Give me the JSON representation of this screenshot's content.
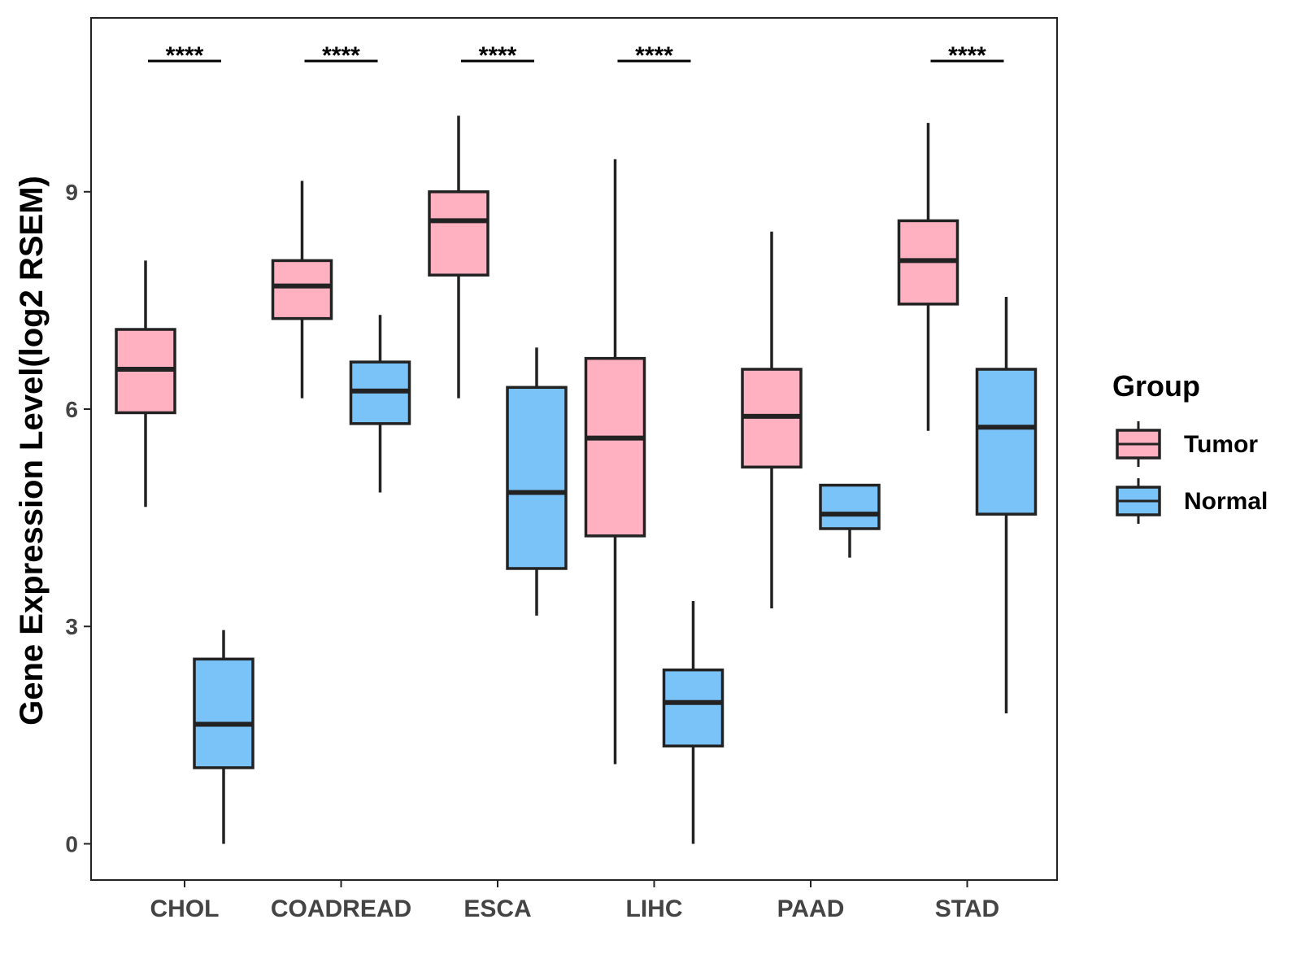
{
  "chart_data": {
    "type": "boxplot",
    "title": "",
    "xlabel": "",
    "ylabel": "Gene Expression Level(log2 RSEM)",
    "ylim": [
      -0.5,
      11.4
    ],
    "yticks": [
      0,
      3,
      6,
      9
    ],
    "categories": [
      "CHOL",
      "COADREAD",
      "ESCA",
      "LIHC",
      "PAAD",
      "STAD"
    ],
    "legend": {
      "title": "Group",
      "position": "right",
      "items": [
        {
          "name": "Tumor",
          "color": "#FFB0C1"
        },
        {
          "name": "Normal",
          "color": "#7AC3F9"
        }
      ]
    },
    "series": [
      {
        "name": "Tumor",
        "color": "#FFB0C1",
        "boxes": [
          {
            "min": 4.65,
            "q1": 5.95,
            "median": 6.55,
            "q3": 7.1,
            "max": 8.05
          },
          {
            "min": 6.15,
            "q1": 7.25,
            "median": 7.7,
            "q3": 8.05,
            "max": 9.15
          },
          {
            "min": 6.15,
            "q1": 7.85,
            "median": 8.6,
            "q3": 9.0,
            "max": 10.05
          },
          {
            "min": 1.1,
            "q1": 4.25,
            "median": 5.6,
            "q3": 6.7,
            "max": 9.45
          },
          {
            "min": 3.25,
            "q1": 5.2,
            "median": 5.9,
            "q3": 6.55,
            "max": 8.45
          },
          {
            "min": 5.7,
            "q1": 7.45,
            "median": 8.05,
            "q3": 8.6,
            "max": 9.95
          }
        ]
      },
      {
        "name": "Normal",
        "color": "#7AC3F9",
        "boxes": [
          {
            "min": 0.0,
            "q1": 1.05,
            "median": 1.65,
            "q3": 2.55,
            "max": 2.95
          },
          {
            "min": 4.85,
            "q1": 5.8,
            "median": 6.25,
            "q3": 6.65,
            "max": 7.3
          },
          {
            "min": 3.15,
            "q1": 3.8,
            "median": 4.85,
            "q3": 6.3,
            "max": 6.85
          },
          {
            "min": 0.0,
            "q1": 1.35,
            "median": 1.95,
            "q3": 2.4,
            "max": 3.35
          },
          {
            "min": 3.95,
            "q1": 4.35,
            "median": 4.55,
            "q3": 4.95,
            "max": 4.95
          },
          {
            "min": 1.8,
            "q1": 4.55,
            "median": 5.75,
            "q3": 6.55,
            "max": 7.55
          }
        ]
      }
    ],
    "significance": [
      {
        "category": "CHOL",
        "label": "****"
      },
      {
        "category": "COADREAD",
        "label": "****"
      },
      {
        "category": "ESCA",
        "label": "****"
      },
      {
        "category": "LIHC",
        "label": "****"
      },
      {
        "category": "PAAD",
        "label": ""
      },
      {
        "category": "STAD",
        "label": "****"
      }
    ]
  }
}
